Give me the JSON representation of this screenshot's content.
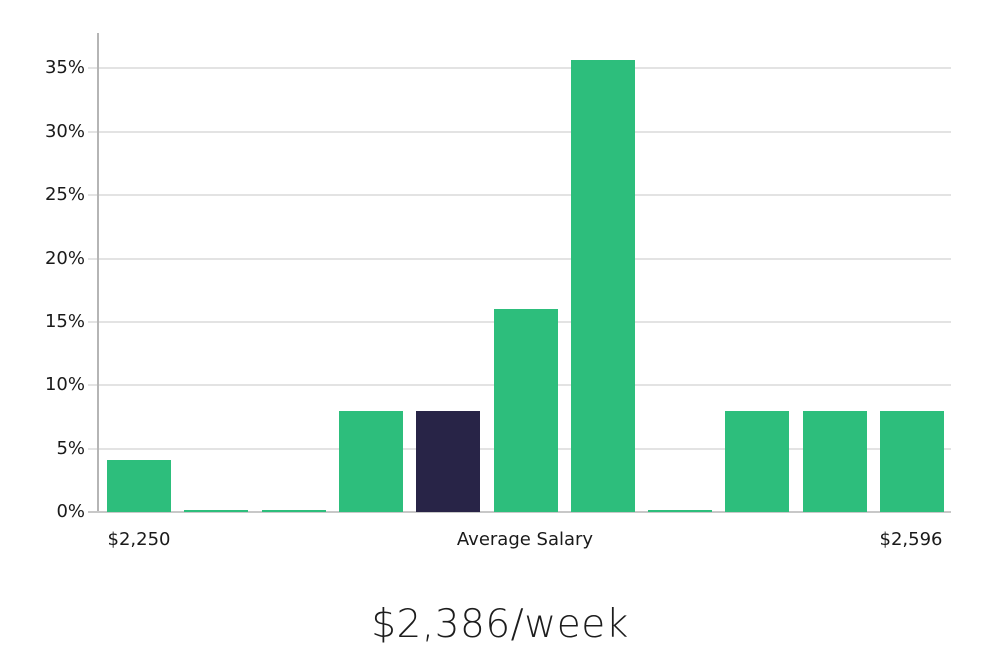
{
  "chart_data": {
    "type": "bar",
    "title": "$2,386/week",
    "xlabel": "",
    "ylabel": "",
    "x_ticks": [
      "$2,250",
      "Average Salary",
      "$2,596"
    ],
    "y_ticks": [
      "0%",
      "5%",
      "10%",
      "15%",
      "20%",
      "25%",
      "30%",
      "35%"
    ],
    "y_tick_values": [
      0,
      5,
      10,
      15,
      20,
      25,
      30,
      35
    ],
    "values": [
      4.1,
      0.1,
      0.1,
      8,
      8,
      16,
      35.7,
      0.1,
      8,
      8,
      8
    ],
    "highlight_index": 4,
    "ylim": [
      0,
      37.8
    ],
    "grid": true,
    "legend_position": "none",
    "colors": {
      "bar": "#2dbe7c",
      "highlight_bar": "#282447",
      "gridline": "#e3e3e3",
      "axis_line": "#b5b5b5",
      "baseline": "#c8c8c8",
      "text": "#1a1a1a"
    }
  }
}
